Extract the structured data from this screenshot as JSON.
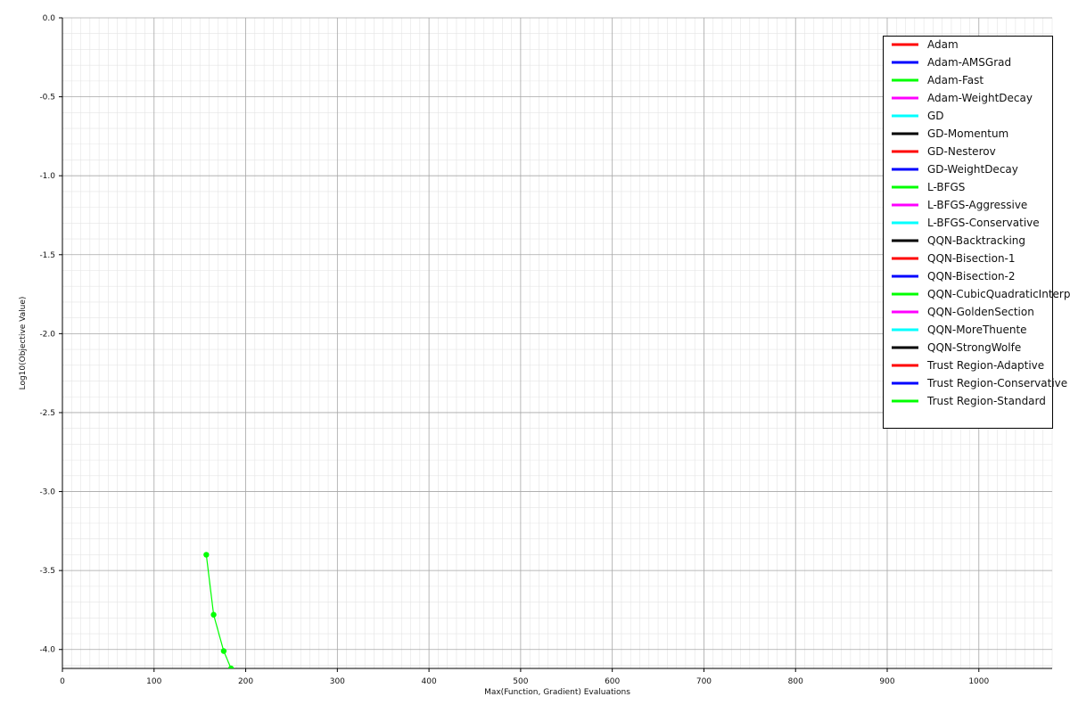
{
  "chart_data": {
    "type": "line",
    "title": "",
    "xlabel": "Max(Function, Gradient) Evaluations",
    "ylabel": "Log10(Objective Value)",
    "xlim": [
      0,
      1080
    ],
    "ylim": [
      -4.12,
      0.0
    ],
    "x_ticks": [
      0,
      100,
      200,
      300,
      400,
      500,
      600,
      700,
      800,
      900,
      1000
    ],
    "x_tick_labels": [
      "0",
      "100",
      "200",
      "300",
      "400",
      "500",
      "600",
      "700",
      "800",
      "900",
      "1000"
    ],
    "y_ticks": [
      0.0,
      -0.5,
      -1.0,
      -1.5,
      -2.0,
      -2.5,
      -3.0,
      -3.5,
      -4.0
    ],
    "y_tick_labels": [
      "0.0",
      "-0.5",
      "-1.0",
      "-1.5",
      "-2.0",
      "-2.5",
      "-3.0",
      "-3.5",
      "-4.0"
    ],
    "grid": true,
    "legend_position": "top-right",
    "series": [
      {
        "name": "Adam",
        "color": "#ff0000",
        "x": [],
        "y": []
      },
      {
        "name": "Adam-AMSGrad",
        "color": "#0000ff",
        "x": [],
        "y": []
      },
      {
        "name": "Adam-Fast",
        "color": "#00ff00",
        "x": [],
        "y": []
      },
      {
        "name": "Adam-WeightDecay",
        "color": "#ff00ff",
        "x": [],
        "y": []
      },
      {
        "name": "GD",
        "color": "#00ffff",
        "x": [],
        "y": []
      },
      {
        "name": "GD-Momentum",
        "color": "#000000",
        "x": [],
        "y": []
      },
      {
        "name": "GD-Nesterov",
        "color": "#ff0000",
        "x": [],
        "y": []
      },
      {
        "name": "GD-WeightDecay",
        "color": "#0000ff",
        "x": [],
        "y": []
      },
      {
        "name": "L-BFGS",
        "color": "#00ff00",
        "x": [
          157,
          165,
          176,
          184
        ],
        "y": [
          -3.4,
          -3.78,
          -4.01,
          -4.12
        ]
      },
      {
        "name": "L-BFGS-Aggressive",
        "color": "#ff00ff",
        "x": [],
        "y": []
      },
      {
        "name": "L-BFGS-Conservative",
        "color": "#00ffff",
        "x": [],
        "y": []
      },
      {
        "name": "QQN-Backtracking",
        "color": "#000000",
        "x": [],
        "y": []
      },
      {
        "name": "QQN-Bisection-1",
        "color": "#ff0000",
        "x": [],
        "y": []
      },
      {
        "name": "QQN-Bisection-2",
        "color": "#0000ff",
        "x": [],
        "y": []
      },
      {
        "name": "QQN-CubicQuadraticInterpolation",
        "color": "#00ff00",
        "x": [],
        "y": []
      },
      {
        "name": "QQN-GoldenSection",
        "color": "#ff00ff",
        "x": [],
        "y": []
      },
      {
        "name": "QQN-MoreThuente",
        "color": "#00ffff",
        "x": [],
        "y": []
      },
      {
        "name": "QQN-StrongWolfe",
        "color": "#000000",
        "x": [],
        "y": []
      },
      {
        "name": "Trust Region-Adaptive",
        "color": "#ff0000",
        "x": [],
        "y": []
      },
      {
        "name": "Trust Region-Conservative",
        "color": "#0000ff",
        "x": [],
        "y": []
      },
      {
        "name": "Trust Region-Standard",
        "color": "#00ff00",
        "x": [],
        "y": []
      }
    ]
  }
}
